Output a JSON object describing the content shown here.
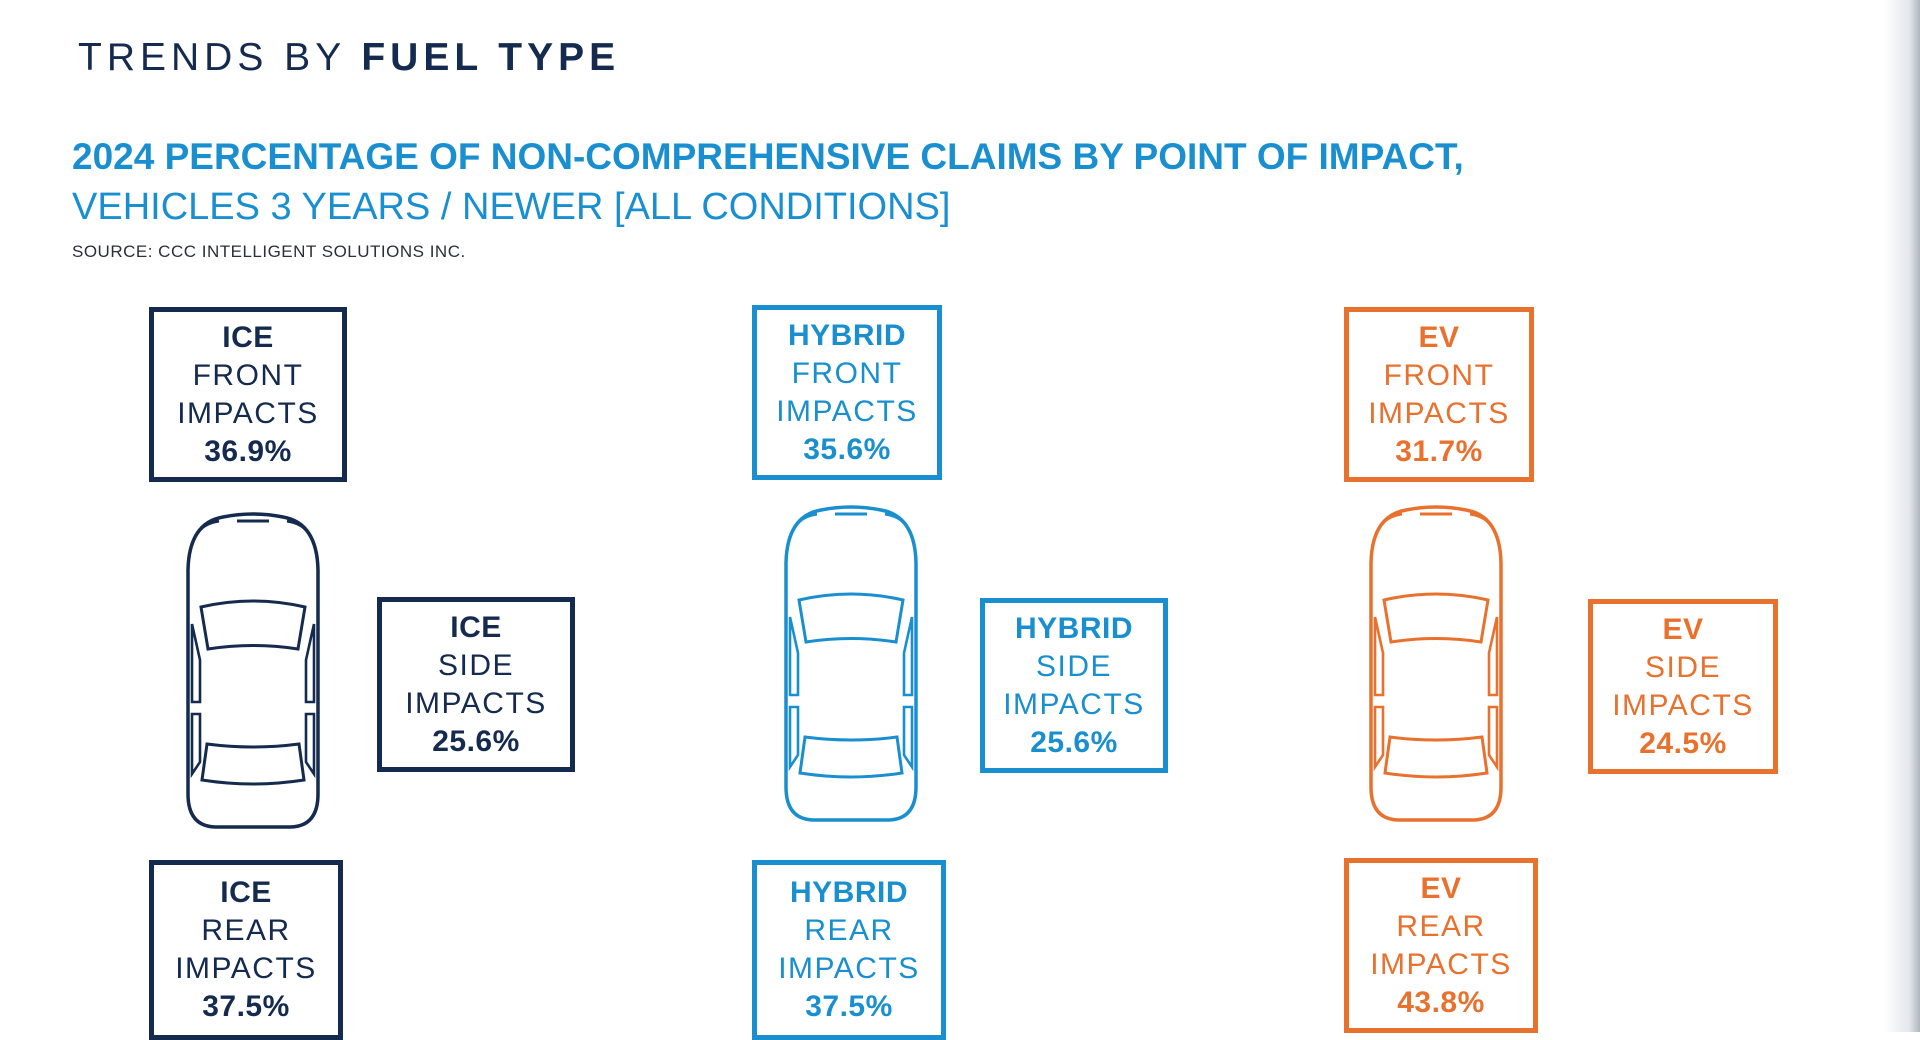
{
  "header": {
    "title_light": "TRENDS BY",
    "title_bold": "FUEL TYPE"
  },
  "chart": {
    "title": "2024 PERCENTAGE OF NON-COMPREHENSIVE CLAIMS BY POINT OF IMPACT,",
    "subtitle": "VEHICLES 3 YEARS / NEWER [ALL CONDITIONS]",
    "source": "SOURCE: CCC INTELLIGENT SOLUTIONS INC."
  },
  "colors": {
    "ice": "#142a4e",
    "hybrid": "#1a8fd0",
    "ev": "#e8712e"
  },
  "icons": {
    "car": "car-top-view-icon"
  },
  "impacts": {
    "ice": {
      "name": "ICE",
      "front": {
        "label1": "FRONT",
        "label2": "IMPACTS",
        "value": "36.9%"
      },
      "side": {
        "label1": "SIDE",
        "label2": "IMPACTS",
        "value": "25.6%"
      },
      "rear": {
        "label1": "REAR",
        "label2": "IMPACTS",
        "value": "37.5%"
      }
    },
    "hybrid": {
      "name": "HYBRID",
      "front": {
        "label1": "FRONT",
        "label2": "IMPACTS",
        "value": "35.6%"
      },
      "side": {
        "label1": "SIDE",
        "label2": "IMPACTS",
        "value": "25.6%"
      },
      "rear": {
        "label1": "REAR",
        "label2": "IMPACTS",
        "value": "37.5%"
      }
    },
    "ev": {
      "name": "EV",
      "front": {
        "label1": "FRONT",
        "label2": "IMPACTS",
        "value": "31.7%"
      },
      "side": {
        "label1": "SIDE",
        "label2": "IMPACTS",
        "value": "24.5%"
      },
      "rear": {
        "label1": "REAR",
        "label2": "IMPACTS",
        "value": "43.8%"
      }
    }
  }
}
